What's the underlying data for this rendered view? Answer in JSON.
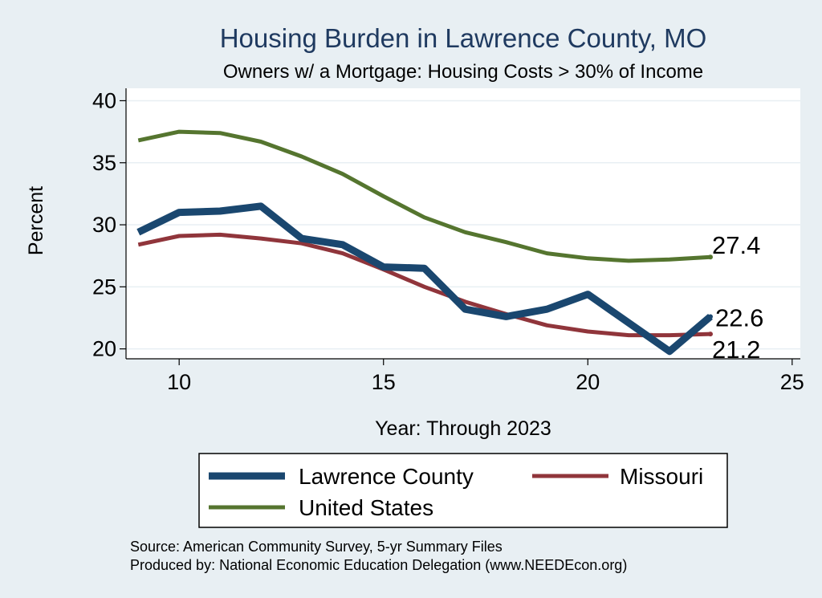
{
  "chart_data": {
    "type": "line",
    "title": "Housing Burden in Lawrence County, MO",
    "subtitle": "Owners w/ a Mortgage: Housing Costs > 30% of Income",
    "xlabel": "Year: Through 2023",
    "ylabel": "Percent",
    "xlim": [
      8.7,
      25.2
    ],
    "ylim": [
      19.2,
      41
    ],
    "xticks": [
      10,
      15,
      20,
      25
    ],
    "yticks": [
      20,
      25,
      30,
      35,
      40
    ],
    "grid": "horizontal",
    "legend_position": "bottom",
    "x": [
      9,
      10,
      11,
      12,
      13,
      14,
      15,
      16,
      17,
      18,
      19,
      20,
      21,
      22,
      23
    ],
    "series": [
      {
        "name": "Lawrence County",
        "color": "#1a476f",
        "width": "thick",
        "values": [
          29.4,
          31.0,
          31.1,
          31.5,
          28.9,
          28.4,
          26.6,
          26.5,
          23.2,
          22.6,
          23.2,
          24.4,
          22.1,
          19.8,
          22.6
        ],
        "end_label": "22.6"
      },
      {
        "name": "Missouri",
        "color": "#90353b",
        "width": "medium",
        "values": [
          28.4,
          29.1,
          29.2,
          28.9,
          28.5,
          27.7,
          26.4,
          25.0,
          23.8,
          22.8,
          21.9,
          21.4,
          21.1,
          21.1,
          21.2
        ],
        "end_label": "21.2"
      },
      {
        "name": "United States",
        "color": "#55752f",
        "width": "medium",
        "values": [
          36.8,
          37.5,
          37.4,
          36.7,
          35.5,
          34.1,
          32.3,
          30.6,
          29.4,
          28.6,
          27.7,
          27.3,
          27.1,
          27.2,
          27.4
        ],
        "end_label": "27.4"
      }
    ],
    "notes": [
      "Source: American Community Survey, 5-yr Summary Files",
      "Produced by: National Economic Education Delegation (www.NEEDEcon.org)"
    ]
  }
}
